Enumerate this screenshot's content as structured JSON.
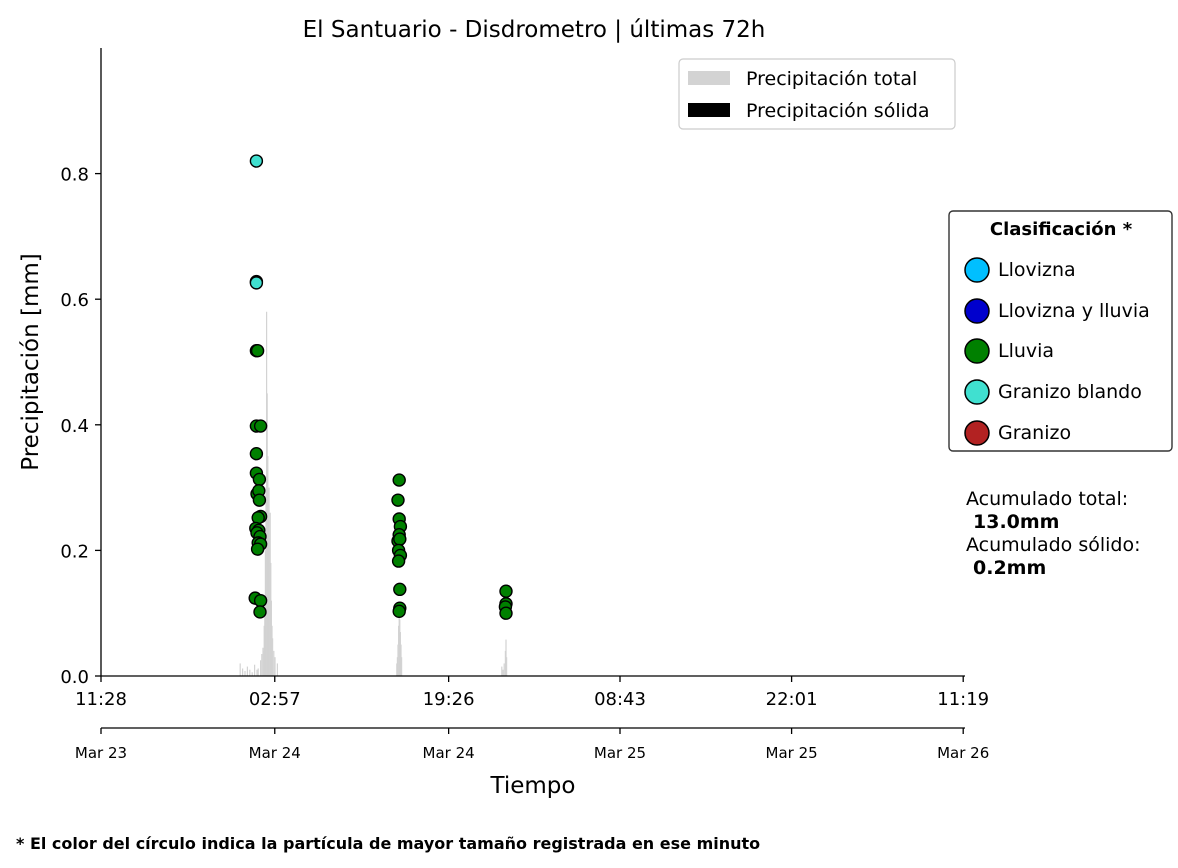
{
  "chart_data": {
    "type": "scatter",
    "title": "El Santuario - Disdrometro  |  últimas 72h",
    "xlabel": "Tiempo",
    "ylabel": "Precipitación [mm]",
    "ylim": [
      0,
      1.0
    ],
    "yticks": [
      0.0,
      0.2,
      0.4,
      0.6,
      0.8
    ],
    "ytick_labels": [
      "0.0",
      "0.2",
      "0.4",
      "0.6",
      "0.8"
    ],
    "xlim_hours": [
      0,
      72
    ],
    "xticks_hours": [
      0,
      14.48,
      28.97,
      43.25,
      57.55,
      71.85
    ],
    "xtick_time_labels": [
      "11:28",
      "02:57",
      "19:26",
      "08:43",
      "22:01",
      "11:19"
    ],
    "xtick_date_labels": [
      "Mar 23",
      "Mar 24",
      "Mar 24",
      "Mar 25",
      "Mar 25",
      "Mar 26"
    ],
    "legend_bars": [
      {
        "label": "Precipitación total",
        "color": "#d3d3d3"
      },
      {
        "label": "Precipitación sólida",
        "color": "#000000"
      }
    ],
    "classification": {
      "title": "Clasificación *",
      "items": [
        {
          "label": "Llovizna",
          "color": "#00bfff"
        },
        {
          "label": "Llovizna y lluvia",
          "color": "#0000cd"
        },
        {
          "label": "Lluvia",
          "color": "#008000"
        },
        {
          "label": "Granizo blando",
          "color": "#40e0d0"
        },
        {
          "label": "Granizo",
          "color": "#b22222"
        }
      ]
    },
    "accumulated": {
      "total_label": "Acumulado total:",
      "total_value": "13.0mm",
      "solid_label": "Acumulado sólido:",
      "solid_value": "0.2mm"
    },
    "footnote": "* El color del círculo indica la partícula de mayor tamaño registrada en ese minuto",
    "bars_total": [
      [
        11.6,
        0.02
      ],
      [
        11.8,
        0.012
      ],
      [
        12.0,
        0.008
      ],
      [
        12.2,
        0.015
      ],
      [
        12.4,
        0.01
      ],
      [
        12.6,
        0.006
      ],
      [
        12.8,
        0.018
      ],
      [
        13.0,
        0.01
      ],
      [
        13.1,
        0.012
      ],
      [
        13.3,
        0.025
      ],
      [
        13.4,
        0.035
      ],
      [
        13.5,
        0.045
      ],
      [
        13.55,
        0.04
      ],
      [
        13.6,
        0.08
      ],
      [
        13.65,
        0.12
      ],
      [
        13.7,
        0.2
      ],
      [
        13.75,
        0.3
      ],
      [
        13.8,
        0.58
      ],
      [
        13.85,
        0.45
      ],
      [
        13.9,
        0.35
      ],
      [
        13.95,
        0.25
      ],
      [
        14.0,
        0.3
      ],
      [
        14.05,
        0.22
      ],
      [
        14.1,
        0.26
      ],
      [
        14.15,
        0.18
      ],
      [
        14.2,
        0.12
      ],
      [
        14.25,
        0.08
      ],
      [
        14.3,
        0.06
      ],
      [
        14.4,
        0.04
      ],
      [
        14.5,
        0.03
      ],
      [
        14.7,
        0.02
      ],
      [
        24.65,
        0.02
      ],
      [
        24.7,
        0.03
      ],
      [
        24.75,
        0.05
      ],
      [
        24.8,
        0.08
      ],
      [
        24.85,
        0.1
      ],
      [
        24.9,
        0.09
      ],
      [
        24.95,
        0.07
      ],
      [
        25.0,
        0.05
      ],
      [
        25.05,
        0.03
      ],
      [
        33.4,
        0.015
      ],
      [
        33.5,
        0.01
      ],
      [
        33.6,
        0.02
      ],
      [
        33.7,
        0.04
      ],
      [
        33.75,
        0.058
      ],
      [
        33.8,
        0.03
      ]
    ],
    "points": [
      {
        "x": 12.95,
        "y": 0.82,
        "cls": "Granizo blando"
      },
      {
        "x": 12.95,
        "y": 0.628,
        "cls": "Lluvia"
      },
      {
        "x": 12.95,
        "y": 0.626,
        "cls": "Granizo blando"
      },
      {
        "x": 12.95,
        "y": 0.518,
        "cls": "Lluvia"
      },
      {
        "x": 13.05,
        "y": 0.518,
        "cls": "Lluvia"
      },
      {
        "x": 12.95,
        "y": 0.398,
        "cls": "Lluvia"
      },
      {
        "x": 13.3,
        "y": 0.398,
        "cls": "Lluvia"
      },
      {
        "x": 12.95,
        "y": 0.354,
        "cls": "Lluvia"
      },
      {
        "x": 12.95,
        "y": 0.323,
        "cls": "Lluvia"
      },
      {
        "x": 13.2,
        "y": 0.313,
        "cls": "Lluvia"
      },
      {
        "x": 13.0,
        "y": 0.29,
        "cls": "Lluvia"
      },
      {
        "x": 13.15,
        "y": 0.295,
        "cls": "Lluvia"
      },
      {
        "x": 13.2,
        "y": 0.28,
        "cls": "Lluvia"
      },
      {
        "x": 13.3,
        "y": 0.254,
        "cls": "Lluvia"
      },
      {
        "x": 13.1,
        "y": 0.252,
        "cls": "Lluvia"
      },
      {
        "x": 12.9,
        "y": 0.235,
        "cls": "Lluvia"
      },
      {
        "x": 13.15,
        "y": 0.232,
        "cls": "Lluvia"
      },
      {
        "x": 13.0,
        "y": 0.228,
        "cls": "Lluvia"
      },
      {
        "x": 13.25,
        "y": 0.222,
        "cls": "Lluvia"
      },
      {
        "x": 13.1,
        "y": 0.212,
        "cls": "Lluvia"
      },
      {
        "x": 13.3,
        "y": 0.21,
        "cls": "Lluvia"
      },
      {
        "x": 13.05,
        "y": 0.202,
        "cls": "Lluvia"
      },
      {
        "x": 12.85,
        "y": 0.124,
        "cls": "Lluvia"
      },
      {
        "x": 13.3,
        "y": 0.12,
        "cls": "Lluvia"
      },
      {
        "x": 13.25,
        "y": 0.102,
        "cls": "Lluvia"
      },
      {
        "x": 24.85,
        "y": 0.312,
        "cls": "Lluvia"
      },
      {
        "x": 24.75,
        "y": 0.28,
        "cls": "Lluvia"
      },
      {
        "x": 24.85,
        "y": 0.25,
        "cls": "Lluvia"
      },
      {
        "x": 24.95,
        "y": 0.238,
        "cls": "Lluvia"
      },
      {
        "x": 24.85,
        "y": 0.225,
        "cls": "Lluvia"
      },
      {
        "x": 24.75,
        "y": 0.215,
        "cls": "Lluvia"
      },
      {
        "x": 24.9,
        "y": 0.218,
        "cls": "Lluvia"
      },
      {
        "x": 24.8,
        "y": 0.2,
        "cls": "Lluvia"
      },
      {
        "x": 24.95,
        "y": 0.192,
        "cls": "Lluvia"
      },
      {
        "x": 24.8,
        "y": 0.183,
        "cls": "Lluvia"
      },
      {
        "x": 24.9,
        "y": 0.138,
        "cls": "Lluvia"
      },
      {
        "x": 24.9,
        "y": 0.108,
        "cls": "Lluvia"
      },
      {
        "x": 24.85,
        "y": 0.103,
        "cls": "Lluvia"
      },
      {
        "x": 33.75,
        "y": 0.135,
        "cls": "Lluvia"
      },
      {
        "x": 33.75,
        "y": 0.115,
        "cls": "Lluvia"
      },
      {
        "x": 33.7,
        "y": 0.11,
        "cls": "Lluvia"
      },
      {
        "x": 33.75,
        "y": 0.1,
        "cls": "Lluvia"
      }
    ]
  }
}
